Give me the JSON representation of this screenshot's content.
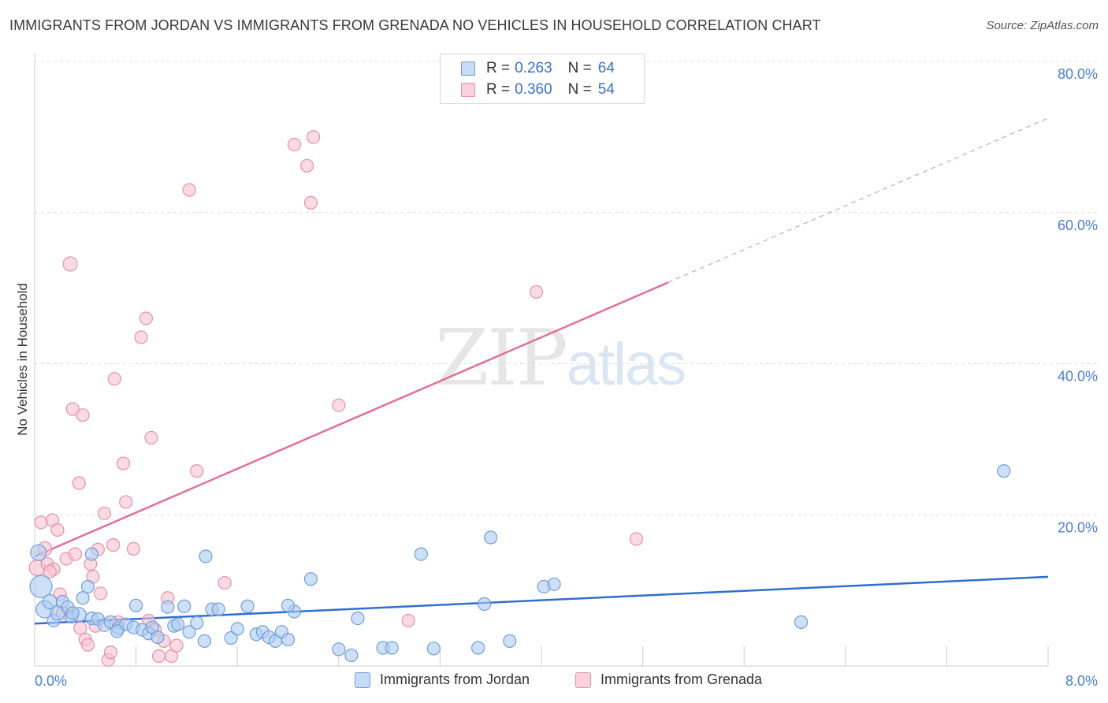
{
  "title": "IMMIGRANTS FROM JORDAN VS IMMIGRANTS FROM GRENADA NO VEHICLES IN HOUSEHOLD CORRELATION CHART",
  "source": "Source: ZipAtlas.com",
  "watermark": {
    "zip": "ZIP",
    "atlas": "atlas"
  },
  "legend_top": [
    {
      "name": "jordan",
      "r_label": "R =",
      "r_value": "0.263",
      "n_label": "N =",
      "n_value": "64"
    },
    {
      "name": "grenada",
      "r_label": "R =",
      "r_value": "0.360",
      "n_label": "N =",
      "n_value": "54"
    }
  ],
  "colors": {
    "jordan_fill": "#aecbf0",
    "jordan_stroke": "#6f9edc",
    "jordan_line": "#2f6fcf",
    "grenada_fill": "#f7c3d2",
    "grenada_stroke": "#e68fab",
    "grenada_line": "#e0709a",
    "tick": "#4a7fd1",
    "grid": "#dddddd"
  },
  "chart_data": {
    "type": "scatter",
    "title": "IMMIGRANTS FROM JORDAN VS IMMIGRANTS FROM GRENADA NO VEHICLES IN HOUSEHOLD CORRELATION CHART",
    "xlabel": "",
    "ylabel": "No Vehicles in Household",
    "xlim": [
      0,
      8
    ],
    "ylim": [
      0,
      80
    ],
    "x_tick_labels": [
      "0.0%",
      "8.0%"
    ],
    "y_ticks": [
      20,
      40,
      60,
      80
    ],
    "y_tick_labels": [
      "20.0%",
      "40.0%",
      "60.0%",
      "80.0%"
    ],
    "grid": true,
    "legend_position": "bottom",
    "series": [
      {
        "name": "Immigrants from Jordan",
        "r": 0.263,
        "n": 64,
        "trend": {
          "x": [
            0,
            8
          ],
          "y": [
            5.6,
            11.8
          ],
          "dashed_from": null
        },
        "points": [
          [
            0.03,
            15.0,
            10
          ],
          [
            0.05,
            10.5,
            14
          ],
          [
            0.08,
            7.5,
            11
          ],
          [
            0.12,
            8.5,
            9
          ],
          [
            0.15,
            6.0,
            8
          ],
          [
            0.18,
            7.0,
            9
          ],
          [
            0.22,
            8.5,
            8
          ],
          [
            0.26,
            7.8,
            8
          ],
          [
            0.29,
            6.5,
            8
          ],
          [
            0.35,
            6.8,
            9
          ],
          [
            0.38,
            9.0,
            8
          ],
          [
            0.45,
            6.3,
            8
          ],
          [
            0.5,
            6.2,
            8
          ],
          [
            0.42,
            10.5,
            8
          ],
          [
            0.55,
            5.4,
            8
          ],
          [
            0.6,
            5.8,
            8
          ],
          [
            0.66,
            5.0,
            8
          ],
          [
            0.72,
            5.5,
            8
          ],
          [
            0.78,
            5.1,
            8
          ],
          [
            0.8,
            8.0,
            8
          ],
          [
            0.85,
            4.8,
            8
          ],
          [
            0.9,
            4.3,
            8
          ],
          [
            0.93,
            5.1,
            8
          ],
          [
            0.97,
            3.8,
            8
          ],
          [
            1.05,
            7.8,
            8
          ],
          [
            1.1,
            5.3,
            8
          ],
          [
            1.13,
            5.5,
            8
          ],
          [
            1.18,
            7.9,
            8
          ],
          [
            1.22,
            4.5,
            8
          ],
          [
            1.28,
            5.7,
            8
          ],
          [
            1.34,
            3.3,
            8
          ],
          [
            1.4,
            7.5,
            8
          ],
          [
            1.45,
            7.5,
            8
          ],
          [
            1.55,
            3.7,
            8
          ],
          [
            1.6,
            4.9,
            8
          ],
          [
            1.68,
            7.9,
            8
          ],
          [
            1.75,
            4.2,
            8
          ],
          [
            1.8,
            4.5,
            8
          ],
          [
            1.85,
            3.8,
            8
          ],
          [
            1.9,
            3.3,
            8
          ],
          [
            1.95,
            4.5,
            8
          ],
          [
            2.0,
            3.5,
            8
          ],
          [
            2.05,
            7.2,
            8
          ],
          [
            2.18,
            11.5,
            8
          ],
          [
            2.4,
            2.2,
            8
          ],
          [
            2.5,
            1.4,
            8
          ],
          [
            2.55,
            6.3,
            8
          ],
          [
            2.75,
            2.4,
            8
          ],
          [
            2.82,
            2.4,
            8
          ],
          [
            3.05,
            14.8,
            8
          ],
          [
            3.15,
            2.3,
            8
          ],
          [
            3.5,
            2.4,
            8
          ],
          [
            3.55,
            8.2,
            8
          ],
          [
            3.75,
            3.3,
            8
          ],
          [
            3.6,
            17.0,
            8
          ],
          [
            4.02,
            10.5,
            8
          ],
          [
            4.1,
            10.8,
            8
          ],
          [
            1.35,
            14.5,
            8
          ],
          [
            0.45,
            14.8,
            8
          ],
          [
            2.0,
            8.0,
            8
          ],
          [
            6.05,
            5.8,
            8
          ],
          [
            7.65,
            25.8,
            8
          ],
          [
            0.3,
            7.0,
            8
          ],
          [
            0.65,
            4.6,
            8
          ]
        ]
      },
      {
        "name": "Immigrants from Grenada",
        "r": 0.36,
        "n": 54,
        "trend": {
          "x": [
            0,
            8
          ],
          "y": [
            14.5,
            72.5
          ],
          "dashed_from": 5.0
        },
        "points": [
          [
            0.02,
            13.0,
            10
          ],
          [
            0.05,
            19.0,
            8
          ],
          [
            0.08,
            15.5,
            9
          ],
          [
            0.1,
            13.5,
            8
          ],
          [
            0.14,
            19.3,
            8
          ],
          [
            0.15,
            12.8,
            8
          ],
          [
            0.18,
            18.0,
            8
          ],
          [
            0.2,
            9.5,
            8
          ],
          [
            0.25,
            14.2,
            8
          ],
          [
            0.28,
            53.2,
            9
          ],
          [
            0.3,
            34.0,
            8
          ],
          [
            0.32,
            14.8,
            8
          ],
          [
            0.35,
            24.2,
            8
          ],
          [
            0.38,
            33.2,
            8
          ],
          [
            0.4,
            3.5,
            8
          ],
          [
            0.42,
            2.8,
            8
          ],
          [
            0.44,
            13.5,
            8
          ],
          [
            0.46,
            11.8,
            8
          ],
          [
            0.48,
            5.3,
            8
          ],
          [
            0.5,
            15.4,
            8
          ],
          [
            0.52,
            9.6,
            8
          ],
          [
            0.55,
            20.2,
            8
          ],
          [
            0.58,
            0.8,
            8
          ],
          [
            0.6,
            1.8,
            8
          ],
          [
            0.62,
            16.0,
            8
          ],
          [
            0.63,
            38.0,
            8
          ],
          [
            0.66,
            5.8,
            8
          ],
          [
            0.7,
            26.8,
            8
          ],
          [
            0.72,
            21.7,
            8
          ],
          [
            0.78,
            15.5,
            8
          ],
          [
            0.84,
            43.5,
            8
          ],
          [
            0.88,
            46.0,
            8
          ],
          [
            0.9,
            6.0,
            8
          ],
          [
            0.92,
            30.2,
            8
          ],
          [
            0.95,
            4.8,
            8
          ],
          [
            0.98,
            1.3,
            8
          ],
          [
            1.02,
            3.3,
            8
          ],
          [
            1.05,
            9.0,
            8
          ],
          [
            1.08,
            1.3,
            8
          ],
          [
            1.12,
            2.7,
            8
          ],
          [
            1.22,
            63.0,
            8
          ],
          [
            1.28,
            25.8,
            8
          ],
          [
            1.5,
            11.0,
            8
          ],
          [
            2.05,
            69.0,
            8
          ],
          [
            2.15,
            66.2,
            8
          ],
          [
            2.18,
            61.3,
            8
          ],
          [
            2.2,
            70.0,
            8
          ],
          [
            2.4,
            34.5,
            8
          ],
          [
            2.95,
            6.0,
            8
          ],
          [
            3.96,
            49.5,
            8
          ],
          [
            4.75,
            16.8,
            8
          ],
          [
            0.36,
            5.0,
            8
          ],
          [
            0.12,
            12.5,
            8
          ],
          [
            0.22,
            7.0,
            8
          ]
        ]
      }
    ]
  },
  "bottom_legend": [
    {
      "label": "Immigrants from Jordan"
    },
    {
      "label": "Immigrants from Grenada"
    }
  ]
}
